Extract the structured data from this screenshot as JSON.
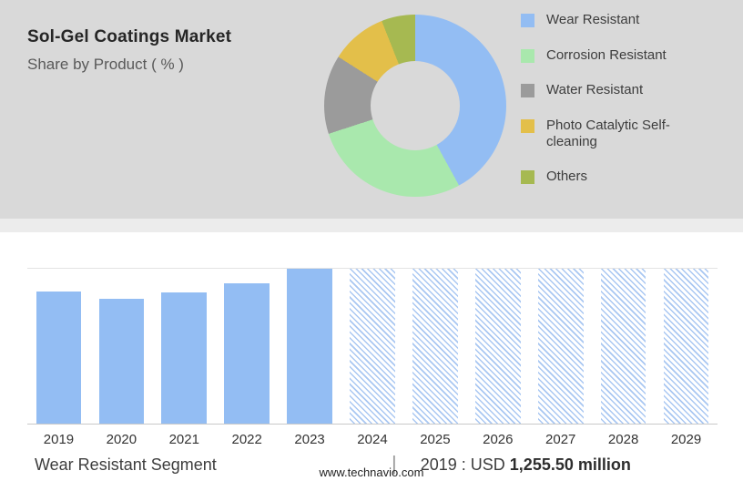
{
  "header": {
    "title": "Sol-Gel Coatings Market",
    "subtitle": "Share by Product ( % )"
  },
  "chart_data": [
    {
      "type": "pie",
      "donut": true,
      "title": "Share by Product ( % )",
      "labels": [
        "Wear Resistant",
        "Corrosion Resistant",
        "Water Resistant",
        "Photo Catalytic Self-cleaning",
        "Others"
      ],
      "values": [
        42,
        28,
        14,
        10,
        6
      ],
      "colors": [
        "#93bdf3",
        "#a9e8ad",
        "#9b9b9b",
        "#e3bf4a",
        "#a6b951"
      ],
      "legend_position": "right"
    },
    {
      "type": "bar",
      "categories": [
        "2019",
        "2020",
        "2021",
        "2022",
        "2023",
        "2024",
        "2025",
        "2026",
        "2027",
        "2028",
        "2029"
      ],
      "values": [
        85,
        80,
        84,
        90,
        100,
        100,
        100,
        100,
        100,
        100,
        100
      ],
      "forecast_from": "2024",
      "bar_color": "#93bdf3",
      "forecast_style": "diagonal-hatch",
      "ylim": [
        0,
        100
      ],
      "y_axis_visible": false,
      "grid": true
    }
  ],
  "footer": {
    "segment_label": "Wear Resistant Segment",
    "separator": "|",
    "value_prefix": "2019 : USD",
    "value": "1,255.50 million"
  },
  "page": {
    "website": "www.technavio.com"
  }
}
